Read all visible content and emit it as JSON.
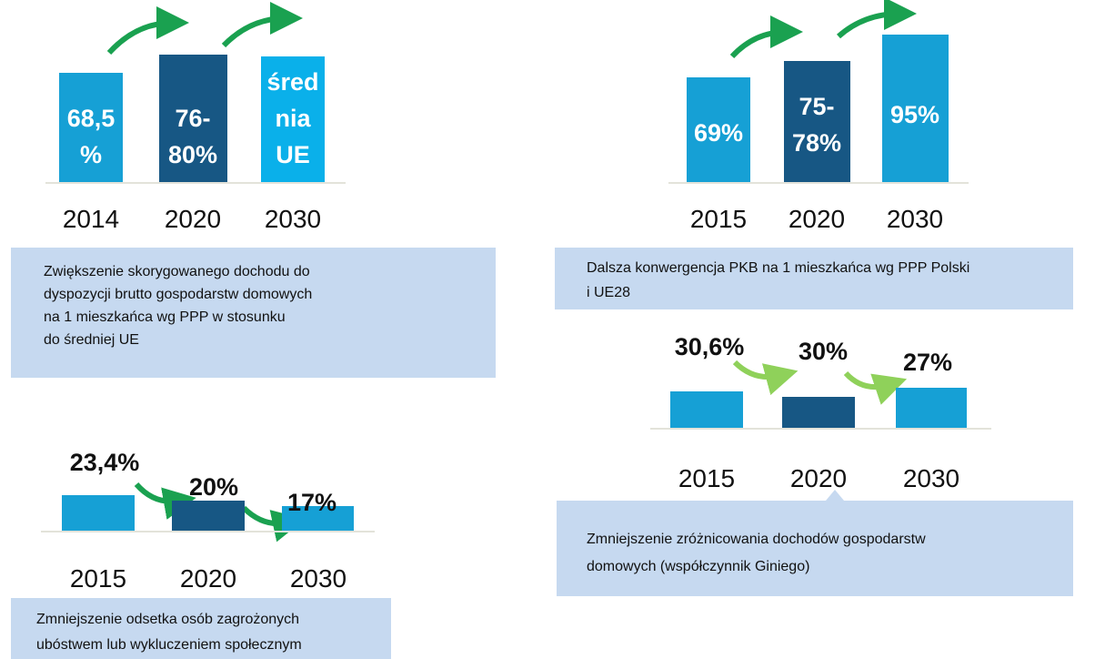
{
  "panels": [
    {
      "bars": [
        {
          "label": [
            "68,5",
            "%"
          ],
          "year": "2014"
        },
        {
          "label": [
            "76-",
            "80%"
          ],
          "year": "2020"
        },
        {
          "label": [
            "śred",
            "nia",
            "UE"
          ],
          "year": "2030"
        }
      ],
      "caption": [
        "Zwiększenie skorygowanego dochodu do",
        "dyspozycji brutto gospodarstw domowych",
        "na 1 mieszkańca wg PPP w stosunku",
        "do średniej UE"
      ]
    },
    {
      "bars": [
        {
          "label": [
            "69%"
          ],
          "year": "2015"
        },
        {
          "label": [
            "75-",
            "78%"
          ],
          "year": "2020"
        },
        {
          "label": [
            "95%"
          ],
          "year": "2030"
        }
      ],
      "caption": [
        "Dalsza konwergencja PKB na  1 mieszkańca wg PPP Polski",
        "i UE28"
      ]
    },
    {
      "bars": [
        {
          "label": [
            "30,6%"
          ],
          "year": "2015"
        },
        {
          "label": [
            "30%"
          ],
          "year": "2020"
        },
        {
          "label": [
            "27%"
          ],
          "year": "2030"
        }
      ],
      "caption": [
        "Zmniejszenie zróżnicowania dochodów gospodarstw",
        "domowych (współczynnik Giniego)"
      ]
    },
    {
      "bars": [
        {
          "label": [
            "23,4%"
          ],
          "year": "2015"
        },
        {
          "label": [
            "20%"
          ],
          "year": "2020"
        },
        {
          "label": [
            "17%"
          ],
          "year": "2030"
        }
      ],
      "caption": [
        "Zmniejszenie odsetka osób zagrożonych",
        "ubóstwem lub wykluczeniem społecznym"
      ]
    }
  ]
}
